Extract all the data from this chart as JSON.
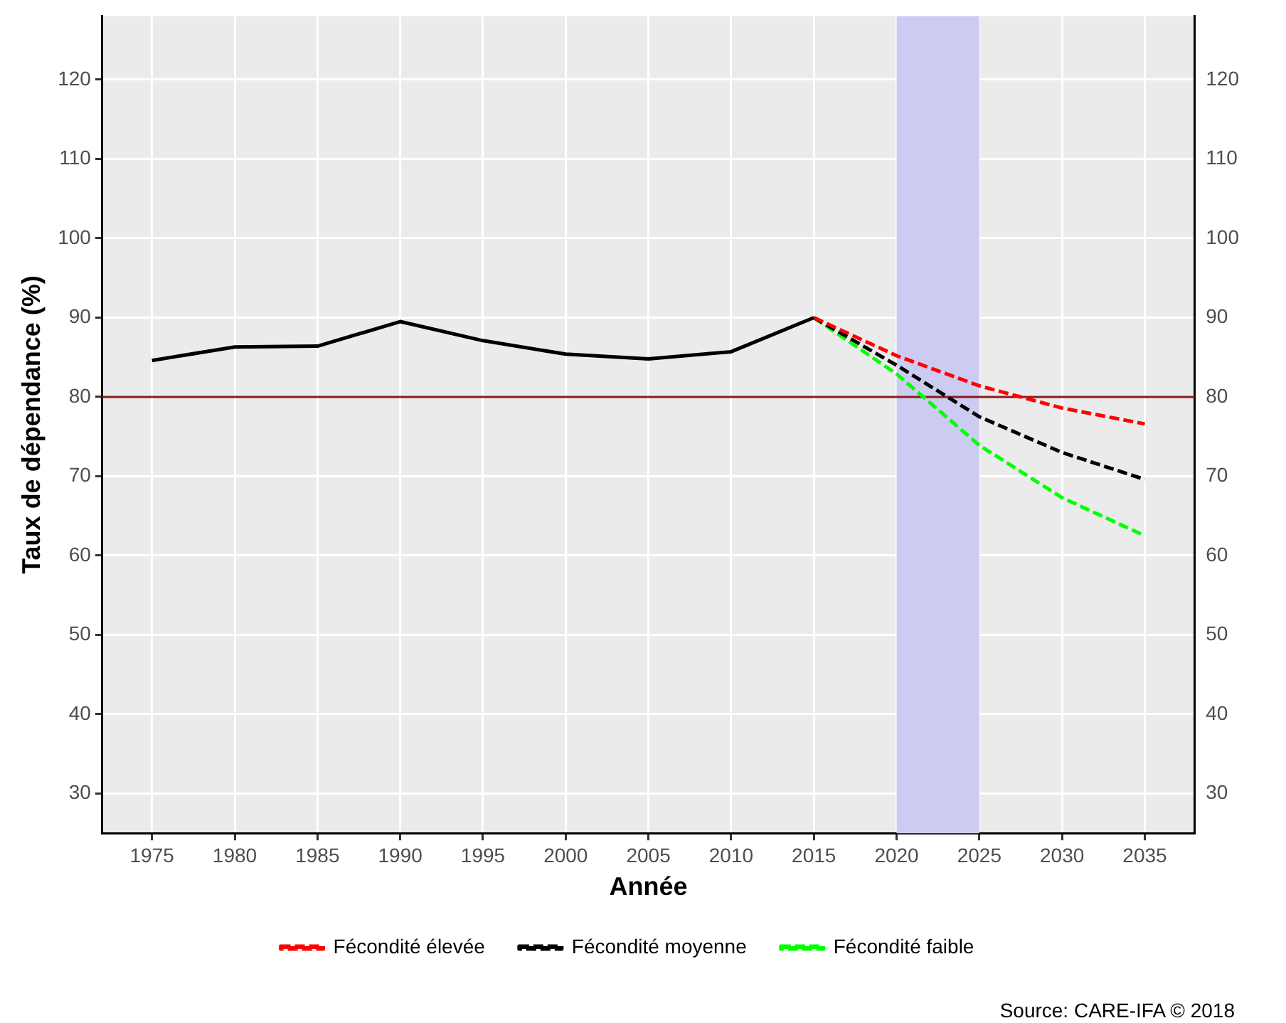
{
  "chart_data": {
    "type": "line",
    "xlabel": "Année",
    "ylabel": "Taux de dépendance (%)",
    "xlim": [
      1972,
      2038
    ],
    "xticks": [
      1975,
      1980,
      1985,
      1990,
      1995,
      2000,
      2005,
      2010,
      2015,
      2020,
      2025,
      2030,
      2035
    ],
    "ylim": [
      25,
      128
    ],
    "yticks": [
      30,
      40,
      50,
      60,
      70,
      80,
      90,
      100,
      110,
      120
    ],
    "y2lim": [
      25,
      128
    ],
    "y2ticks": [
      30,
      40,
      50,
      60,
      70,
      80,
      90,
      100,
      110,
      120
    ],
    "series": [
      {
        "color": "#000000",
        "line_style": "solid",
        "x": [
          1975,
          1980,
          1985,
          1990,
          1995,
          2000,
          2005,
          2010,
          2015
        ],
        "values": [
          84.6,
          86.3,
          86.4,
          89.5,
          87.1,
          85.4,
          84.8,
          85.7,
          90
        ]
      },
      {
        "name": "Fécondité élevée",
        "color": "#ff0000",
        "line_style": "dashed",
        "x": [
          2015,
          2020,
          2025,
          2030,
          2035
        ],
        "values": [
          90,
          85.2,
          81.4,
          78.6,
          76.6
        ]
      },
      {
        "name": "Fécondité moyenne",
        "color": "#000000",
        "line_style": "dashed",
        "x": [
          2015,
          2020,
          2025,
          2030,
          2035
        ],
        "values": [
          90,
          84,
          77.5,
          73,
          69.6
        ]
      },
      {
        "name": "Fécondité faible",
        "color": "#00ff00",
        "line_style": "dashed",
        "x": [
          2015,
          2020,
          2025,
          2030,
          2035
        ],
        "values": [
          90,
          82.9,
          73.9,
          67.3,
          62.5
        ]
      }
    ],
    "ref_lines": [
      {
        "axis": "y",
        "value": 80,
        "color": "#8b1a1a"
      }
    ],
    "bands": [
      {
        "axis": "x",
        "from": 2020,
        "to": 2025,
        "color": "#ccccf2"
      }
    ],
    "grid": true,
    "legend": "bottom",
    "marker": "none",
    "annotations": [
      "Source: CARE-IFA © 2018"
    ]
  }
}
